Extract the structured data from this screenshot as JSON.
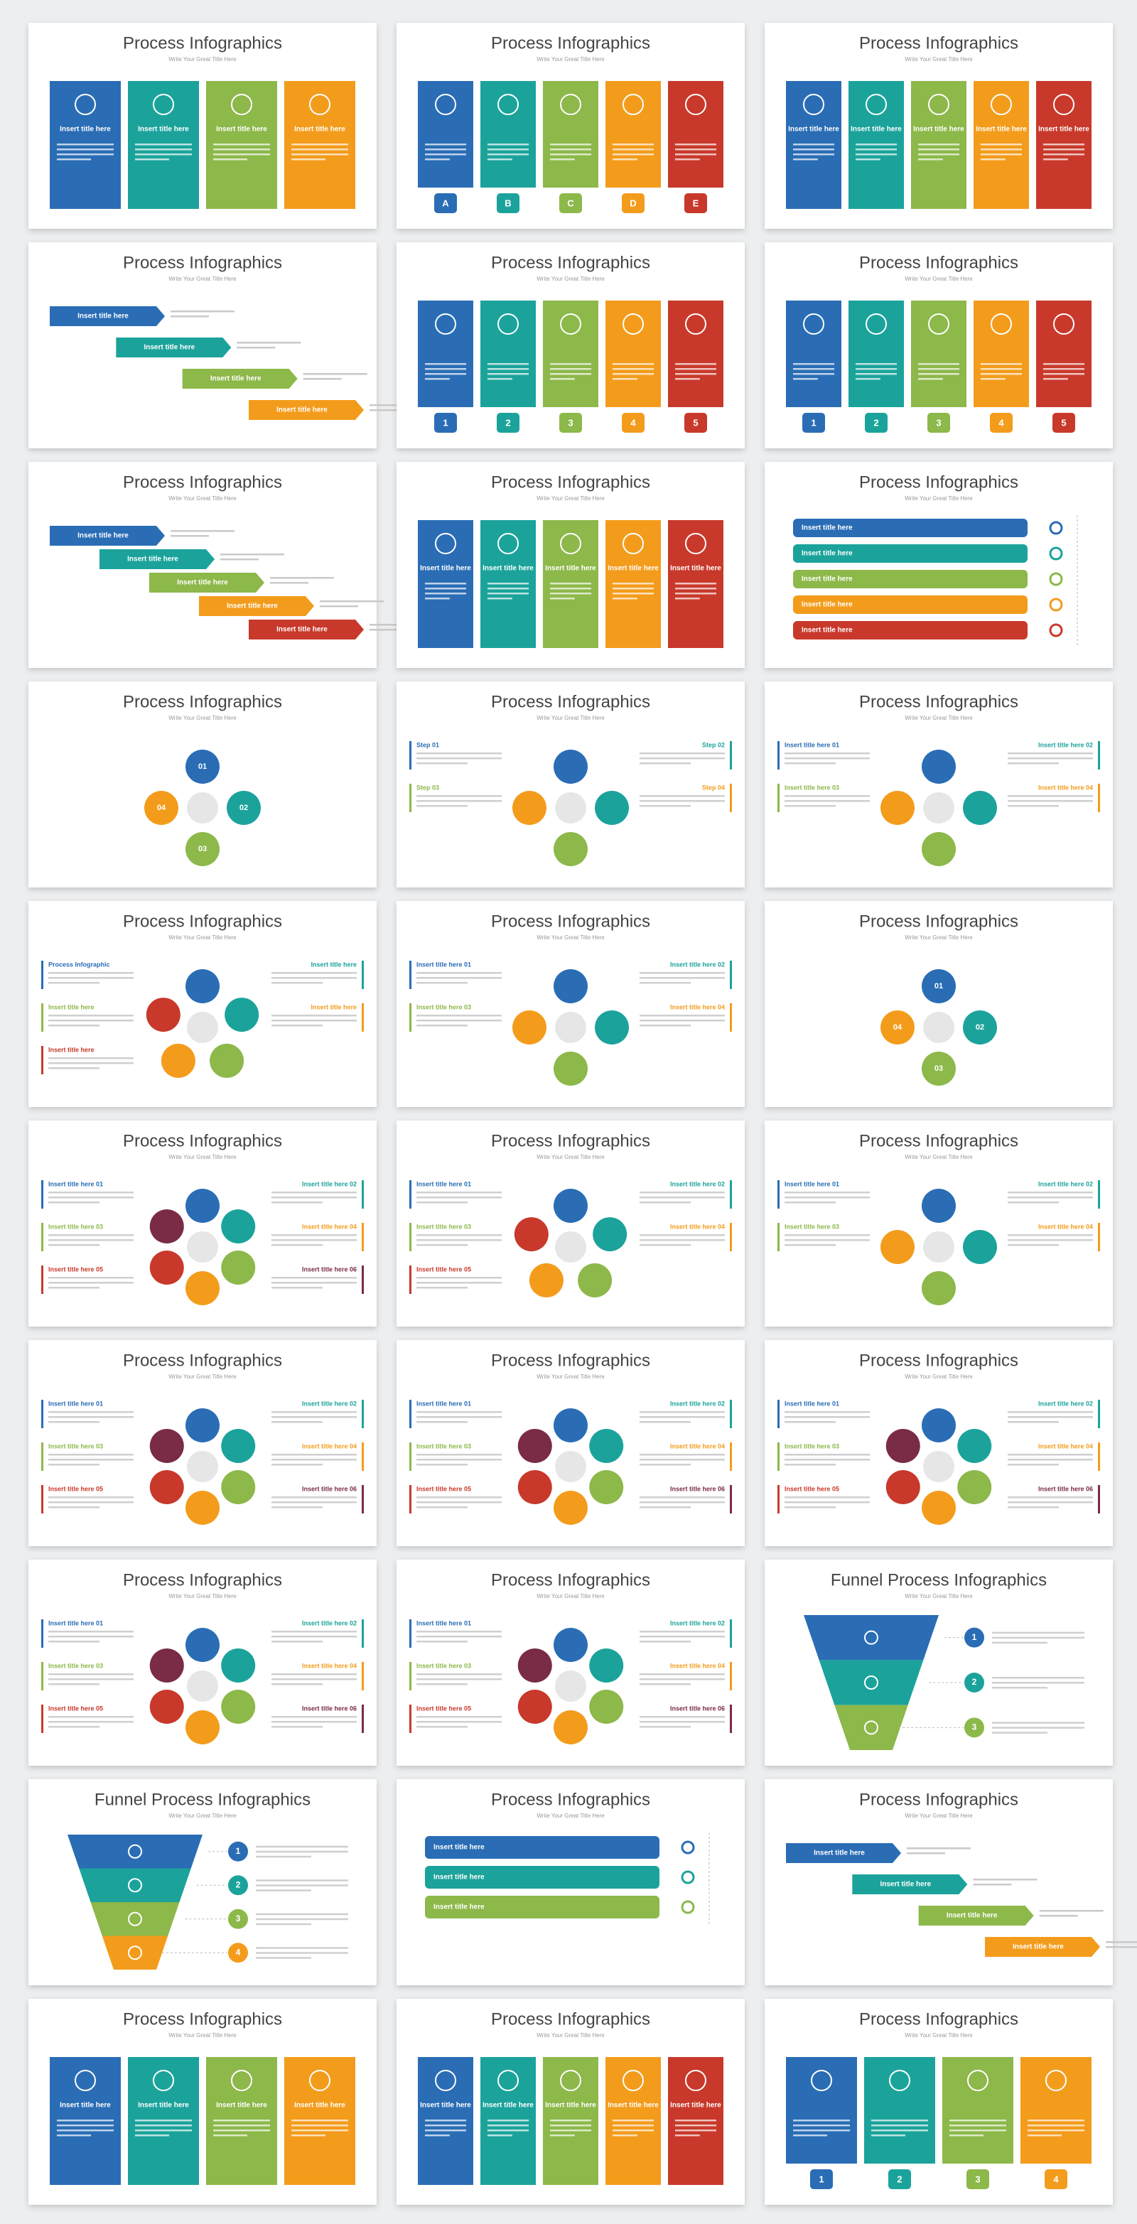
{
  "slides": [
    {
      "title": "Process Infographics",
      "subtitle": "Write Your Great Title Here",
      "items": [
        "Insert title here",
        "Insert title here",
        "Insert title here",
        "Insert title here"
      ]
    },
    {
      "title": "Process Infographics",
      "subtitle": "Write Your Great Title Here",
      "items": [
        "A",
        "B",
        "C",
        "D",
        "E"
      ]
    },
    {
      "title": "Process Infographics",
      "subtitle": "Write Your Great Title Here",
      "items": [
        "Insert title here",
        "Insert title here",
        "Insert title here",
        "Insert title here",
        "Insert title here"
      ]
    },
    {
      "title": "Process Infographics",
      "subtitle": "Write Your Great Title Here",
      "items": [
        "Insert title here",
        "Insert title here",
        "Insert title here",
        "Insert title here"
      ]
    },
    {
      "title": "Process Infographics",
      "subtitle": "Write Your Great Title Here",
      "items": [
        "1",
        "2",
        "3",
        "4",
        "5"
      ]
    },
    {
      "title": "Process Infographics",
      "subtitle": "Write Your Great Title Here",
      "items": [
        "1",
        "2",
        "3",
        "4",
        "5"
      ]
    },
    {
      "title": "Process Infographics",
      "subtitle": "Write Your Great Title Here",
      "items": [
        "Insert title here",
        "Insert title here",
        "Insert title here",
        "Insert title here",
        "Insert title here"
      ]
    },
    {
      "title": "Process Infographics",
      "subtitle": "Write Your Great Title Here",
      "items": [
        "Insert title here",
        "Insert title here",
        "Insert title here",
        "Insert title here",
        "Insert title here"
      ]
    },
    {
      "title": "Process Infographics",
      "subtitle": "Write Your Great Title Here",
      "items": [
        "Insert title here",
        "Insert title here",
        "Insert title here",
        "Insert title here",
        "Insert title here"
      ]
    },
    {
      "title": "Process Infographics",
      "subtitle": "Write Your Great Title Here",
      "items": [
        "01",
        "02",
        "03",
        "04"
      ]
    },
    {
      "title": "Process Infographics",
      "subtitle": "Write Your Great Title Here",
      "items": [
        "Step 01",
        "Step 02",
        "Step 03",
        "Step 04"
      ]
    },
    {
      "title": "Process Infographics",
      "subtitle": "Write Your Great Title Here",
      "items": [
        "Insert title here 01",
        "Insert title here 02",
        "Insert title here 03",
        "Insert title here 04"
      ]
    },
    {
      "title": "Process Infographics",
      "subtitle": "Write Your Great Title Here",
      "items": [
        "Process Infographic",
        "Insert title here",
        "Insert title here",
        "Insert title here",
        "Insert title here"
      ]
    },
    {
      "title": "Process Infographics",
      "subtitle": "Write Your Great Title Here",
      "items": [
        "Insert title here 01",
        "Insert title here 02",
        "Insert title here 03",
        "Insert title here 04"
      ]
    },
    {
      "title": "Process Infographics",
      "subtitle": "Write Your Great Title Here",
      "items": [
        "01",
        "02",
        "03",
        "04"
      ]
    },
    {
      "title": "Process Infographics",
      "subtitle": "Write Your Great Title Here",
      "items": [
        "Insert title here 01",
        "Insert title here 02",
        "Insert title here 03",
        "Insert title here 04",
        "Insert title here 05",
        "Insert title here 06"
      ]
    },
    {
      "title": "Process Infographics",
      "subtitle": "Write Your Great Title Here",
      "items": [
        "Insert title here 01",
        "Insert title here 02",
        "Insert title here 03",
        "Insert title here 04",
        "Insert title here 05"
      ]
    },
    {
      "title": "Process Infographics",
      "subtitle": "Write Your Great Title Here",
      "items": [
        "Insert title here 01",
        "Insert title here 02",
        "Insert title here 03",
        "Insert title here 04"
      ]
    },
    {
      "title": "Process Infographics",
      "subtitle": "Write Your Great Title Here",
      "items": [
        "Insert title here 01",
        "Insert title here 02",
        "Insert title here 03",
        "Insert title here 04",
        "Insert title here 05",
        "Insert title here 06"
      ]
    },
    {
      "title": "Process Infographics",
      "subtitle": "Write Your Great Title Here",
      "items": [
        "Insert title here 01",
        "Insert title here 02",
        "Insert title here 03",
        "Insert title here 04",
        "Insert title here 05",
        "Insert title here 06"
      ]
    },
    {
      "title": "Process Infographics",
      "subtitle": "Write Your Great Title Here",
      "items": [
        "Insert title here 01",
        "Insert title here 02",
        "Insert title here 03",
        "Insert title here 04",
        "Insert title here 05",
        "Insert title here 06"
      ]
    },
    {
      "title": "Process Infographics",
      "subtitle": "Write Your Great Title Here",
      "items": [
        "Insert title here 01",
        "Insert title here 02",
        "Insert title here 03",
        "Insert title here 04",
        "Insert title here 05",
        "Insert title here 06"
      ]
    },
    {
      "title": "Process Infographics",
      "subtitle": "Write Your Great Title Here",
      "items": [
        "Insert title here 01",
        "Insert title here 02",
        "Insert title here 03",
        "Insert title here 04",
        "Insert title here 05",
        "Insert title here 06"
      ]
    },
    {
      "title": "Funnel Process Infographics",
      "subtitle": "Write Your Great Title Here",
      "items": [
        "1",
        "2",
        "3"
      ]
    },
    {
      "title": "Funnel Process Infographics",
      "subtitle": "Write Your Great Title Here",
      "items": [
        "1",
        "2",
        "3",
        "4"
      ]
    },
    {
      "title": "Process Infographics",
      "subtitle": "Write Your Great Title Here",
      "items": [
        "Insert title here",
        "Insert title here",
        "Insert title here"
      ]
    },
    {
      "title": "Process Infographics",
      "subtitle": "Write Your Great Title Here",
      "items": [
        "Insert title here",
        "Insert title here",
        "Insert title here",
        "Insert title here"
      ]
    },
    {
      "title": "Process Infographics",
      "subtitle": "Write Your Great Title Here",
      "items": [
        "Insert title here",
        "Insert title here",
        "Insert title here",
        "Insert title here"
      ]
    },
    {
      "title": "Process Infographics",
      "subtitle": "Write Your Great Title Here",
      "items": [
        "Insert title here",
        "Insert title here",
        "Insert title here",
        "Insert title here",
        "Insert title here"
      ]
    },
    {
      "title": "Process Infographics",
      "subtitle": "Write Your Great Title Here",
      "items": [
        "1",
        "2",
        "3",
        "4"
      ]
    }
  ]
}
